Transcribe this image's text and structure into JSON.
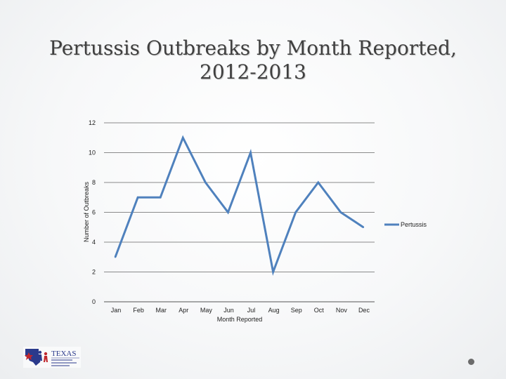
{
  "slide": {
    "title_line1": "Pertussis Outbreaks by Month Reported,",
    "title_line2": "2012-2013"
  },
  "logo": {
    "text": "TEXAS",
    "subtext": "Department of State Health Services",
    "colors": {
      "blue": "#2b3a8c",
      "red": "#c0272d"
    }
  },
  "chart_data": {
    "type": "line",
    "categories": [
      "Jan",
      "Feb",
      "Mar",
      "Apr",
      "May",
      "Jun",
      "Jul",
      "Aug",
      "Sep",
      "Oct",
      "Nov",
      "Dec"
    ],
    "series": [
      {
        "name": "Pertussis",
        "values": [
          3,
          7,
          7,
          11,
          8,
          6,
          10,
          2,
          6,
          8,
          6,
          5
        ],
        "color": "#4f81bd"
      }
    ],
    "xlabel": "Month Reported",
    "ylabel": "Number of Outbreaks",
    "ylim": [
      0,
      12
    ],
    "yticks": [
      0,
      2,
      4,
      6,
      8,
      10,
      12
    ],
    "grid": true,
    "legend_position": "right"
  }
}
